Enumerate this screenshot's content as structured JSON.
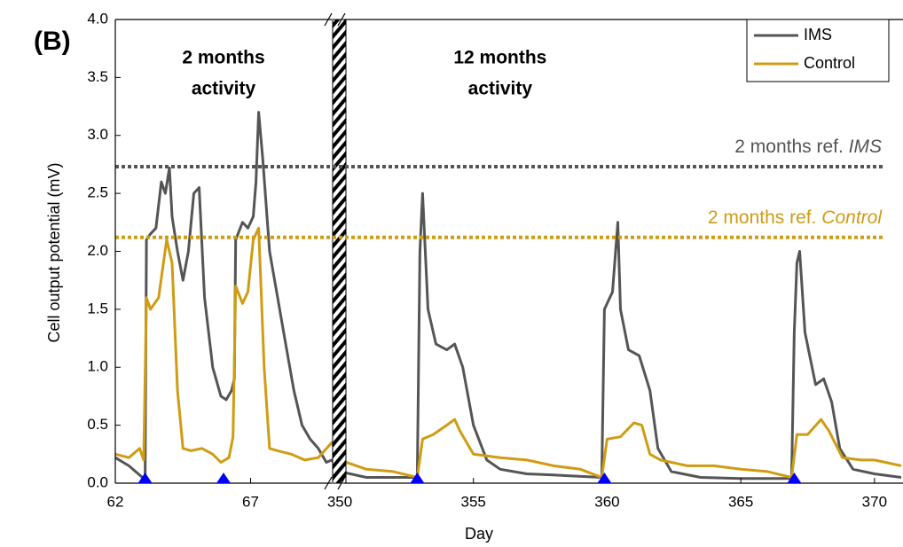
{
  "chart_data": {
    "type": "line",
    "panel_label": "(B)",
    "x_label": "Day",
    "y_label": "Cell output potential (mV)",
    "xlim": [
      62,
      371
    ],
    "xbreak": [
      70,
      350
    ],
    "ylim": [
      0,
      4
    ],
    "xticks": [
      62,
      67,
      350,
      355,
      360,
      365,
      370
    ],
    "yticks": [
      {
        "value": 0,
        "label": "0.0"
      },
      {
        "value": 0.5,
        "label": "0.5"
      },
      {
        "value": 1,
        "label": "1.0"
      },
      {
        "value": 1.5,
        "label": "1.5"
      },
      {
        "value": 2,
        "label": "2.0"
      },
      {
        "value": 2.5,
        "label": "2.5"
      },
      {
        "value": 3,
        "label": "3.0"
      },
      {
        "value": 3.5,
        "label": "3.5"
      },
      {
        "value": 4,
        "label": "4.0"
      }
    ],
    "legend": "top-right",
    "series": [
      {
        "name": "IMS",
        "color": "#555555",
        "x": [
          62,
          62.5,
          63.0,
          63.1,
          63.15,
          63.3,
          63.5,
          63.7,
          63.85,
          64.0,
          64.1,
          64.3,
          64.5,
          64.7,
          64.9,
          65.1,
          65.3,
          65.6,
          65.9,
          66.1,
          66.3,
          66.4,
          66.45,
          66.7,
          66.9,
          67.1,
          67.2,
          67.3,
          67.45,
          67.7,
          68.0,
          68.3,
          68.6,
          68.9,
          69.2,
          69.5,
          69.8,
          70,
          350,
          351,
          352.5,
          352.9,
          353.0,
          353.1,
          353.3,
          353.6,
          354,
          354.3,
          354.6,
          355,
          355.5,
          356,
          357,
          358,
          359.8,
          359.9,
          360.2,
          360.4,
          360.5,
          360.8,
          361.2,
          361.6,
          361.9,
          362.4,
          363.5,
          365,
          366.9,
          367.0,
          367.1,
          367.2,
          367.4,
          367.8,
          368.1,
          368.4,
          368.7,
          369.2,
          370,
          371
        ],
        "values": [
          0.22,
          0.15,
          0.05,
          0.02,
          2.1,
          2.15,
          2.2,
          2.6,
          2.5,
          2.72,
          2.3,
          2.0,
          1.75,
          2.0,
          2.5,
          2.55,
          1.6,
          1.0,
          0.75,
          0.72,
          0.8,
          0.9,
          2.1,
          2.25,
          2.2,
          2.3,
          2.6,
          3.2,
          2.8,
          2.0,
          1.6,
          1.2,
          0.8,
          0.5,
          0.38,
          0.3,
          0.18,
          0.2,
          0.1,
          0.05,
          0.05,
          0.05,
          2.0,
          2.5,
          1.5,
          1.2,
          1.15,
          1.2,
          1.0,
          0.5,
          0.2,
          0.12,
          0.08,
          0.07,
          0.05,
          1.5,
          1.65,
          2.25,
          1.5,
          1.15,
          1.1,
          0.8,
          0.3,
          0.1,
          0.05,
          0.04,
          0.04,
          1.3,
          1.9,
          2.0,
          1.3,
          0.85,
          0.9,
          0.7,
          0.3,
          0.12,
          0.08,
          0.05
        ]
      },
      {
        "name": "Control",
        "color": "#d09c14",
        "x": [
          62,
          62.5,
          62.9,
          63.05,
          63.15,
          63.3,
          63.6,
          63.9,
          64.1,
          64.3,
          64.5,
          64.8,
          65.2,
          65.6,
          65.9,
          66.2,
          66.35,
          66.45,
          66.7,
          66.9,
          67.1,
          67.3,
          67.5,
          67.7,
          68.0,
          68.5,
          69.0,
          69.5,
          70,
          350,
          351,
          352,
          352.9,
          353.1,
          353.5,
          354.0,
          354.3,
          354.5,
          355,
          356,
          357,
          358,
          359,
          359.8,
          360.0,
          360.5,
          361,
          361.3,
          361.6,
          362,
          363,
          364,
          365,
          366,
          366.9,
          367.1,
          367.5,
          368,
          368.3,
          368.8,
          369.5,
          370,
          371
        ],
        "values": [
          0.25,
          0.22,
          0.3,
          0.2,
          1.6,
          1.5,
          1.6,
          2.1,
          1.9,
          0.8,
          0.3,
          0.28,
          0.3,
          0.25,
          0.18,
          0.22,
          0.4,
          1.7,
          1.55,
          1.65,
          2.1,
          2.2,
          1.0,
          0.3,
          0.28,
          0.25,
          0.2,
          0.22,
          0.35,
          0.2,
          0.12,
          0.1,
          0.05,
          0.38,
          0.42,
          0.5,
          0.55,
          0.45,
          0.25,
          0.22,
          0.2,
          0.15,
          0.12,
          0.05,
          0.38,
          0.4,
          0.52,
          0.5,
          0.25,
          0.2,
          0.15,
          0.15,
          0.12,
          0.1,
          0.05,
          0.42,
          0.42,
          0.55,
          0.45,
          0.22,
          0.2,
          0.2,
          0.15
        ]
      }
    ],
    "reference_lines": [
      {
        "label": "2 months ref. ",
        "label_emphasis": "IMS",
        "value": 2.73,
        "color": "#555555"
      },
      {
        "label": "2 months ref. ",
        "label_emphasis": "Control",
        "value": 2.12,
        "color": "#d09c14"
      }
    ],
    "annotations": [
      {
        "lines": [
          "2 months",
          "activity"
        ],
        "x": 66
      },
      {
        "lines": [
          "12 months",
          "activity"
        ],
        "x": 356
      }
    ],
    "event_markers": {
      "x": [
        63.1,
        66,
        352.9,
        359.9,
        367.0
      ],
      "color": "#0000ff"
    }
  }
}
